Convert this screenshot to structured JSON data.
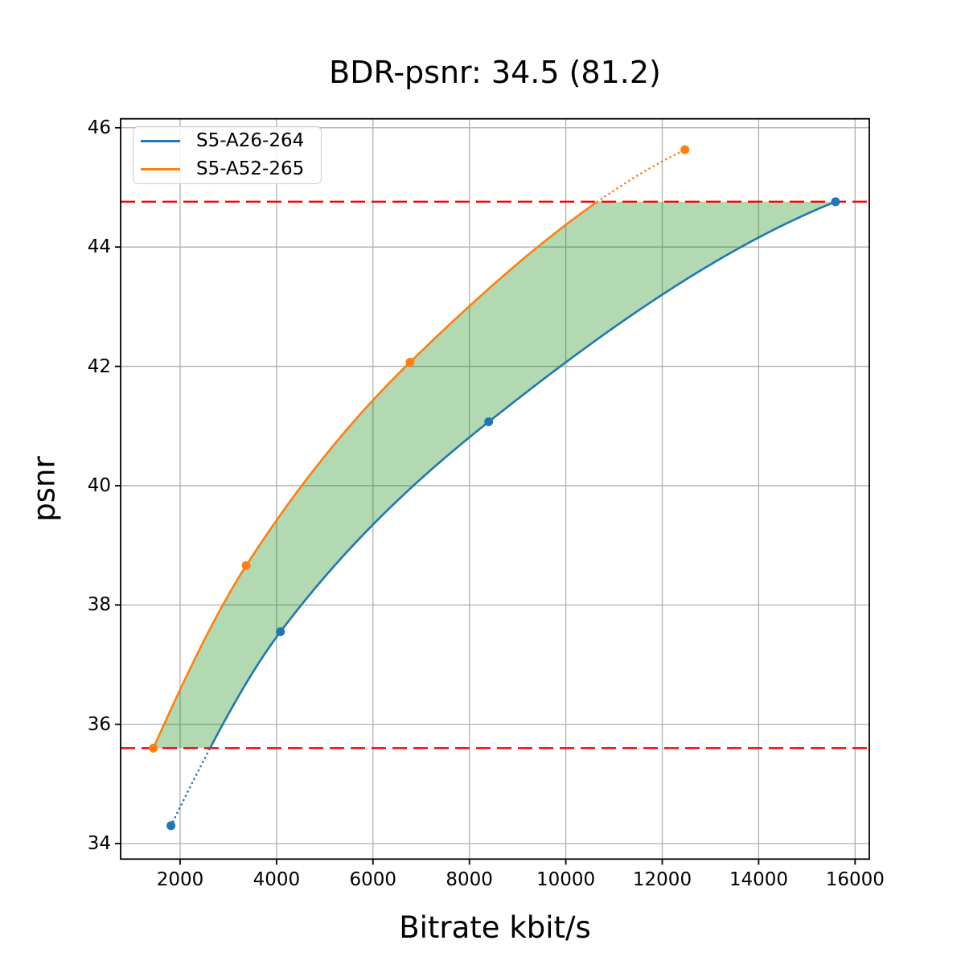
{
  "chart_data": {
    "type": "line",
    "title": "BDR-psnr: 34.5 (81.2)",
    "xlabel": "Bitrate kbit/s",
    "ylabel": "psnr",
    "xlim": [
      766,
      16295
    ],
    "ylim": [
      33.74,
      46.15
    ],
    "x_ticks": [
      2000,
      4000,
      6000,
      8000,
      10000,
      12000,
      14000,
      16000
    ],
    "y_ticks": [
      34,
      36,
      38,
      40,
      42,
      44,
      46
    ],
    "grid": true,
    "grid_color": "#b0b0b0",
    "legend_position": "upper-left",
    "series": [
      {
        "name": "S5-A26-264",
        "color": "#1f77b4",
        "points": [
          [
            1810,
            34.3
          ],
          [
            4080,
            37.55
          ],
          [
            8400,
            41.07
          ],
          [
            15595,
            44.76
          ]
        ],
        "solid_y_range": [
          35.6,
          44.76
        ]
      },
      {
        "name": "S5-A52-265",
        "color": "#ff7f0e",
        "points": [
          [
            1445,
            35.6
          ],
          [
            3370,
            38.66
          ],
          [
            6770,
            42.07
          ],
          [
            12470,
            45.63
          ]
        ],
        "solid_y_range": [
          35.6,
          44.76
        ]
      }
    ],
    "reference_lines": [
      {
        "y": 44.76,
        "color": "#ff0000",
        "style": "dashed"
      },
      {
        "y": 35.6,
        "color": "#ff0000",
        "style": "dashed"
      }
    ],
    "shaded_region": {
      "between": [
        "S5-A52-265",
        "S5-A26-264"
      ],
      "y_range": [
        35.6,
        44.76
      ],
      "color": "rgba(0,128,0,0.3)"
    }
  }
}
